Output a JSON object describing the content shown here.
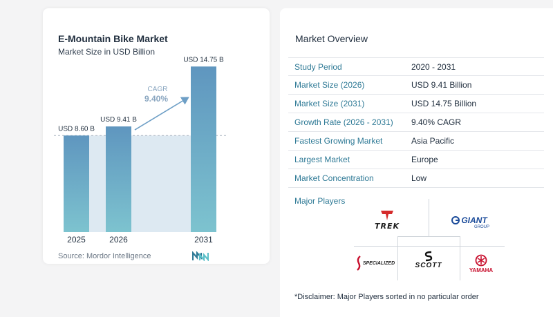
{
  "chart_data": {
    "type": "bar",
    "title": "E-Mountain Bike Market",
    "subtitle": "Market Size in USD Billion",
    "categories": [
      "2025",
      "2026",
      "2031"
    ],
    "values": [
      8.6,
      9.41,
      14.75
    ],
    "value_labels": [
      "USD 8.60 B",
      "USD 9.41 B",
      "USD 14.75 B"
    ],
    "cagr_label": "CAGR",
    "cagr_value": "9.40%",
    "ylim": [
      0,
      16
    ],
    "colors": {
      "bar_top": "#5f96bf",
      "bar_bottom": "#7dc3cf",
      "arrow": "#6e9fc6",
      "band": "#dde9f2"
    }
  },
  "source": {
    "prefix": "Source:",
    "name": "Mordor Intelligence"
  },
  "overview": {
    "title": "Market Overview",
    "rows": [
      {
        "label": "Study Period",
        "value": "2020 - 2031"
      },
      {
        "label": "Market Size (2026)",
        "value": "USD 9.41 Billion"
      },
      {
        "label": "Market Size (2031)",
        "value": "USD 14.75 Billion"
      },
      {
        "label": "Growth Rate (2026 - 2031)",
        "value": "9.40% CAGR"
      },
      {
        "label": "Fastest Growing Market",
        "value": "Asia Pacific"
      },
      {
        "label": "Largest Market",
        "value": "Europe"
      },
      {
        "label": "Market Concentration",
        "value": "Low"
      }
    ]
  },
  "players": {
    "title": "Major Players",
    "trek": "TREK",
    "giant": "GIANT",
    "giant_sub": "GROUP",
    "specialized": "SPECIALIZED",
    "scott": "SCOTT",
    "yamaha": "YAMAHA"
  },
  "disclaimer": "*Disclaimer: Major Players sorted in no particular order"
}
